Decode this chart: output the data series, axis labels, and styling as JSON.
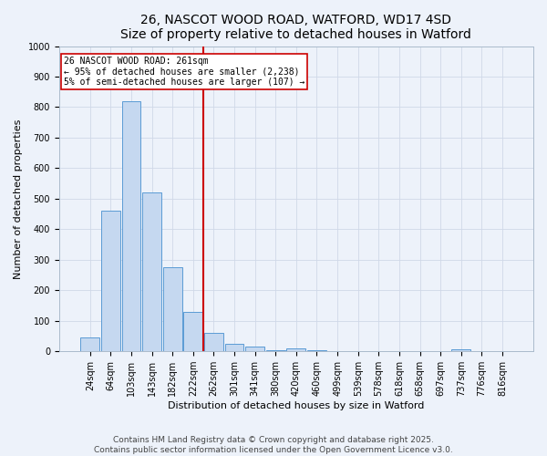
{
  "title": "26, NASCOT WOOD ROAD, WATFORD, WD17 4SD",
  "subtitle": "Size of property relative to detached houses in Watford",
  "xlabel": "Distribution of detached houses by size in Watford",
  "ylabel": "Number of detached properties",
  "bar_color": "#c5d8f0",
  "bar_edge_color": "#5b9bd5",
  "bar_categories": [
    "24sqm",
    "64sqm",
    "103sqm",
    "143sqm",
    "182sqm",
    "222sqm",
    "262sqm",
    "301sqm",
    "341sqm",
    "380sqm",
    "420sqm",
    "460sqm",
    "499sqm",
    "539sqm",
    "578sqm",
    "618sqm",
    "658sqm",
    "697sqm",
    "737sqm",
    "776sqm",
    "816sqm"
  ],
  "bar_values": [
    45,
    460,
    820,
    520,
    275,
    130,
    60,
    25,
    15,
    5,
    10,
    3,
    2,
    0,
    2,
    0,
    0,
    0,
    8,
    0,
    0
  ],
  "ylim": [
    0,
    1000
  ],
  "yticks": [
    0,
    100,
    200,
    300,
    400,
    500,
    600,
    700,
    800,
    900,
    1000
  ],
  "red_line_x": 5.5,
  "annotation_text": "26 NASCOT WOOD ROAD: 261sqm\n← 95% of detached houses are smaller (2,238)\n5% of semi-detached houses are larger (107) →",
  "annotation_box_color": "#ffffff",
  "annotation_box_edge": "#cc0000",
  "red_line_color": "#cc0000",
  "background_color": "#edf2fa",
  "grid_color": "#d0d8e8",
  "footer_text": "Contains HM Land Registry data © Crown copyright and database right 2025.\nContains public sector information licensed under the Open Government Licence v3.0.",
  "title_fontsize": 10,
  "subtitle_fontsize": 9,
  "xlabel_fontsize": 8,
  "ylabel_fontsize": 8,
  "tick_fontsize": 7,
  "annotation_fontsize": 7,
  "footer_fontsize": 6.5
}
